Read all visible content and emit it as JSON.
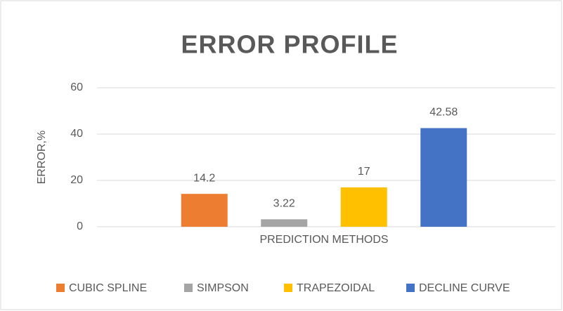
{
  "chart_data": {
    "type": "bar",
    "title": "ERROR PROFILE",
    "x_label": "PREDICTION METHODS",
    "y_label": "ERROR,%",
    "categories": [
      null
    ],
    "series": [
      {
        "name": "CUBIC SPLINE",
        "color": "#ed7d31",
        "values": [
          14.2
        ]
      },
      {
        "name": "SIMPSON",
        "color": "#a5a5a5",
        "values": [
          3.22
        ]
      },
      {
        "name": "TRAPEZOIDAL",
        "color": "#ffc000",
        "values": [
          17
        ]
      },
      {
        "name": "DECLINE CURVE",
        "color": "#4472c4",
        "values": [
          42.58
        ]
      }
    ],
    "ylim": [
      0,
      60
    ],
    "yticks": [
      0,
      20,
      40,
      60
    ],
    "grid": true,
    "legend": "bottom"
  }
}
